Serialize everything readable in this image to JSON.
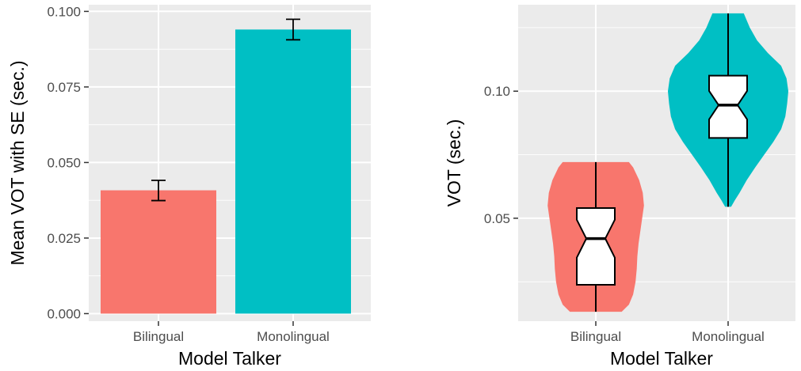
{
  "chart_data": [
    {
      "type": "bar",
      "xlabel": "Model Talker",
      "ylabel": "Mean VOT with SE (sec.)",
      "categories": [
        "Bilingual",
        "Monolingual"
      ],
      "values": [
        0.0408,
        0.094
      ],
      "error_low": [
        0.0374,
        0.0906
      ],
      "error_high": [
        0.0441,
        0.0974
      ],
      "ylim": [
        -0.0025,
        0.1022
      ],
      "y_ticks": [
        0.0,
        0.025,
        0.05,
        0.075,
        0.1
      ],
      "y_tick_labels": [
        "0.000",
        "0.025",
        "0.050",
        "0.075",
        "0.100"
      ],
      "colors": [
        "#F8766D",
        "#00BFC4"
      ],
      "grid": true,
      "legend": "none"
    },
    {
      "type": "violin",
      "xlabel": "Model Talker",
      "ylabel": "VOT (sec.)",
      "categories": [
        "Bilingual",
        "Monolingual"
      ],
      "ylim": [
        0.0095,
        0.134
      ],
      "y_ticks": [
        0.05,
        0.1
      ],
      "y_tick_labels": [
        "0.05",
        "0.10"
      ],
      "colors": [
        "#F8766D",
        "#00BFC4"
      ],
      "grid": true,
      "legend": "none",
      "box": [
        {
          "min": 0.0132,
          "q1": 0.0238,
          "median": 0.042,
          "q3": 0.054,
          "max": 0.0721,
          "notch_low": 0.0345,
          "notch_high": 0.0494
        },
        {
          "min": 0.0545,
          "q1": 0.0816,
          "median": 0.0945,
          "q3": 0.1061,
          "max": 0.1306,
          "notch_low": 0.0889,
          "notch_high": 0.1001
        }
      ],
      "violin": [
        {
          "y": [
            0.0132,
            0.016,
            0.02,
            0.025,
            0.03,
            0.035,
            0.04,
            0.045,
            0.05,
            0.055,
            0.06,
            0.065,
            0.07,
            0.0721
          ],
          "width": [
            0.43,
            0.55,
            0.62,
            0.66,
            0.68,
            0.69,
            0.71,
            0.74,
            0.77,
            0.8,
            0.78,
            0.72,
            0.62,
            0.55
          ]
        },
        {
          "y": [
            0.0545,
            0.057,
            0.06,
            0.065,
            0.07,
            0.075,
            0.08,
            0.085,
            0.09,
            0.095,
            0.1,
            0.105,
            0.11,
            0.115,
            0.12,
            0.125,
            0.1306
          ],
          "width": [
            0.05,
            0.11,
            0.19,
            0.31,
            0.45,
            0.6,
            0.75,
            0.88,
            0.95,
            0.98,
            1.0,
            0.97,
            0.88,
            0.66,
            0.48,
            0.36,
            0.26
          ]
        }
      ]
    }
  ]
}
